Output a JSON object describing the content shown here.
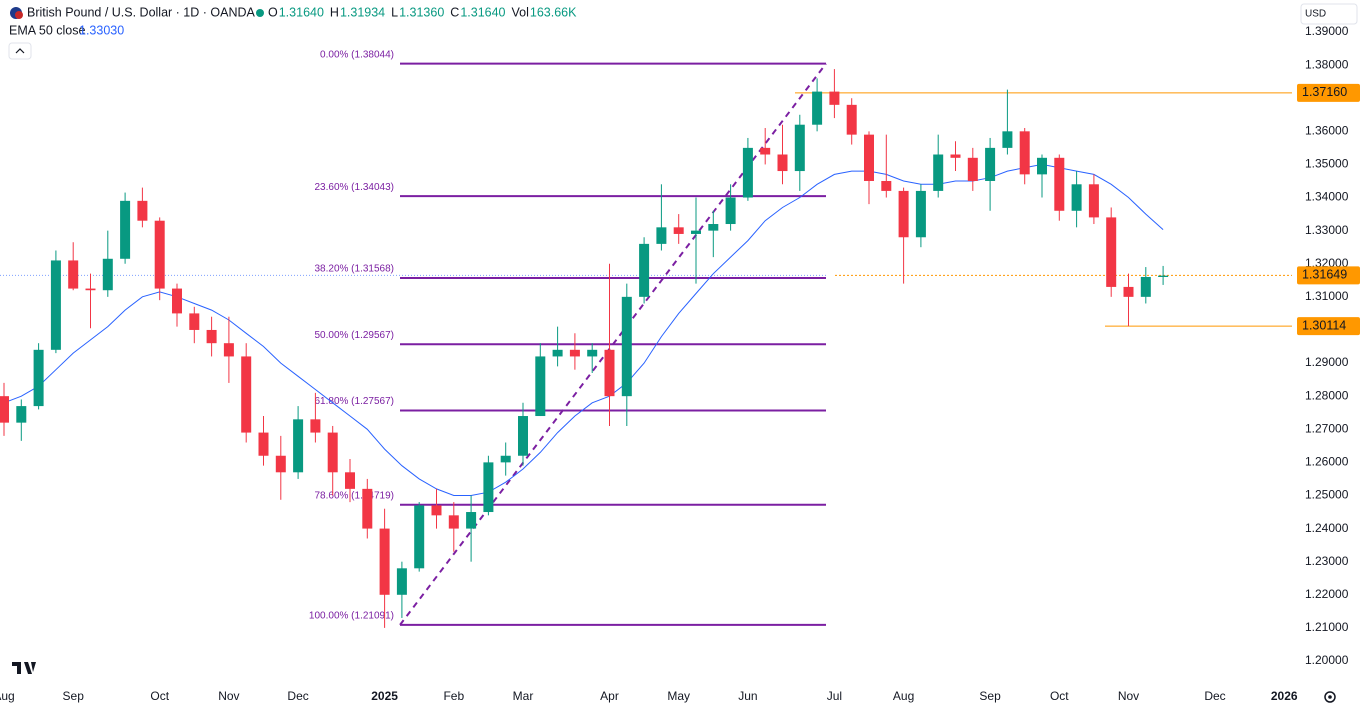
{
  "header": {
    "symbol": "British Pound / U.S. Dollar · 1D · OANDA",
    "ohlc": [
      {
        "key": "O",
        "value": "1.31640"
      },
      {
        "key": "H",
        "value": "1.31934"
      },
      {
        "key": "L",
        "value": "1.31360"
      },
      {
        "key": "C",
        "value": "1.31640"
      },
      {
        "key": "Vol",
        "value": "163.66K"
      }
    ],
    "indicator_value": "1.33030",
    "currency": "USD"
  },
  "chart_data": {
    "type": "candlestick",
    "categories": [
      "Aug",
      null,
      null,
      null,
      "Sep",
      null,
      null,
      null,
      null,
      "Oct",
      null,
      null,
      null,
      "Nov",
      null,
      null,
      null,
      "Dec",
      null,
      null,
      null,
      null,
      "2025",
      null,
      null,
      null,
      "Feb",
      null,
      null,
      null,
      "Mar",
      null,
      null,
      null,
      null,
      "Apr",
      null,
      null,
      null,
      "May",
      null,
      null,
      null,
      "Jun",
      null,
      null,
      null,
      null,
      "Jul",
      null,
      null,
      null,
      "Aug",
      null,
      null,
      null,
      null,
      "Sep",
      null,
      null,
      null,
      "Oct",
      null,
      null,
      null,
      "Nov",
      null,
      null,
      null,
      null,
      "Dec",
      null,
      null,
      null,
      "2026"
    ],
    "open": [
      1.28,
      1.272,
      1.277,
      1.294,
      1.321,
      1.3125,
      1.312,
      1.3215,
      1.339,
      1.333,
      1.3125,
      1.305,
      1.3,
      1.296,
      1.292,
      1.269,
      1.262,
      1.257,
      1.273,
      1.269,
      1.257,
      1.252,
      1.24,
      1.22,
      1.228,
      1.247,
      1.244,
      1.24,
      1.245,
      1.26,
      1.262,
      1.274,
      1.292,
      1.294,
      1.292,
      1.294,
      1.28,
      1.31,
      1.326,
      1.331,
      1.329,
      1.33,
      1.332,
      1.34,
      1.355,
      1.353,
      1.348,
      1.362,
      1.372,
      1.368,
      1.359,
      1.345,
      1.342,
      1.328,
      1.342,
      1.353,
      1.352,
      1.345,
      1.355,
      1.36,
      1.347,
      1.352,
      1.336,
      1.344,
      1.334,
      1.313,
      1.31,
      1.316,
      null,
      null,
      null,
      null,
      null,
      null,
      null
    ],
    "high": [
      1.284,
      1.279,
      1.296,
      1.324,
      1.3265,
      1.317,
      1.33,
      1.3415,
      1.343,
      1.334,
      1.314,
      1.307,
      1.304,
      1.304,
      1.296,
      1.274,
      1.268,
      1.277,
      1.281,
      1.271,
      1.261,
      1.255,
      1.246,
      1.23,
      1.248,
      1.252,
      1.248,
      1.25,
      1.262,
      1.266,
      1.278,
      1.296,
      1.301,
      1.299,
      1.296,
      1.32,
      1.314,
      1.328,
      1.344,
      1.335,
      1.34,
      1.336,
      1.344,
      1.358,
      1.361,
      1.362,
      1.365,
      1.376,
      1.3788,
      1.37,
      1.36,
      1.359,
      1.343,
      1.344,
      1.359,
      1.357,
      1.355,
      1.358,
      1.3726,
      1.361,
      1.353,
      1.353,
      1.348,
      1.347,
      1.337,
      1.317,
      1.319,
      1.31934,
      null,
      null,
      null,
      null,
      null,
      null,
      null
    ],
    "low": [
      1.268,
      1.2665,
      1.276,
      1.293,
      1.312,
      1.3005,
      1.31,
      1.32,
      1.331,
      1.309,
      1.301,
      1.296,
      1.292,
      1.284,
      1.266,
      1.259,
      1.2487,
      1.255,
      1.266,
      1.25,
      1.248,
      1.237,
      1.21,
      1.213,
      1.227,
      1.24,
      1.233,
      1.23,
      1.244,
      1.256,
      1.259,
      1.274,
      1.289,
      1.288,
      1.287,
      1.271,
      1.271,
      1.308,
      1.324,
      1.326,
      1.314,
      1.322,
      1.33,
      1.339,
      1.35,
      1.344,
      1.342,
      1.36,
      1.364,
      1.356,
      1.338,
      1.34,
      1.314,
      1.325,
      1.34,
      1.348,
      1.342,
      1.336,
      1.353,
      1.344,
      1.34,
      1.333,
      1.331,
      1.332,
      1.31,
      1.3011,
      1.308,
      1.3136,
      null,
      null,
      null,
      null,
      null,
      null,
      null
    ],
    "close": [
      1.272,
      1.277,
      1.294,
      1.321,
      1.3125,
      1.312,
      1.3215,
      1.339,
      1.333,
      1.3125,
      1.305,
      1.3,
      1.296,
      1.292,
      1.269,
      1.262,
      1.257,
      1.273,
      1.269,
      1.257,
      1.252,
      1.24,
      1.22,
      1.228,
      1.247,
      1.244,
      1.24,
      1.245,
      1.26,
      1.262,
      1.274,
      1.292,
      1.294,
      1.292,
      1.294,
      1.28,
      1.31,
      1.326,
      1.331,
      1.329,
      1.33,
      1.332,
      1.34,
      1.355,
      1.353,
      1.348,
      1.362,
      1.372,
      1.368,
      1.359,
      1.345,
      1.342,
      1.328,
      1.342,
      1.353,
      1.352,
      1.345,
      1.355,
      1.36,
      1.347,
      1.352,
      1.336,
      1.344,
      1.334,
      1.313,
      1.31,
      1.316,
      1.3164,
      null,
      null,
      null,
      null,
      null,
      null,
      null
    ],
    "up_color": "#089981",
    "down_color": "#f23645",
    "ylim": [
      1.19275,
      1.39967
    ],
    "yticks": [
      {
        "value": 1.39,
        "label": "1.39000"
      },
      {
        "value": 1.38,
        "label": "1.38000"
      },
      {
        "value": 1.37,
        "label": "1.37000"
      },
      {
        "value": 1.36,
        "label": "1.36000"
      },
      {
        "value": 1.35,
        "label": "1.35000"
      },
      {
        "value": 1.34,
        "label": "1.34000"
      },
      {
        "value": 1.33,
        "label": "1.33000"
      },
      {
        "value": 1.32,
        "label": "1.32000"
      },
      {
        "value": 1.31,
        "label": "1.31000"
      },
      {
        "value": 1.3,
        "label": "1.30000"
      },
      {
        "value": 1.29,
        "label": "1.29000"
      },
      {
        "value": 1.28,
        "label": "1.28000"
      },
      {
        "value": 1.27,
        "label": "1.27000"
      },
      {
        "value": 1.26,
        "label": "1.26000"
      },
      {
        "value": 1.25,
        "label": "1.25000"
      },
      {
        "value": 1.24,
        "label": "1.24000"
      },
      {
        "value": 1.23,
        "label": "1.23000"
      },
      {
        "value": 1.22,
        "label": "1.22000"
      },
      {
        "value": 1.21,
        "label": "1.21000"
      },
      {
        "value": 1.2,
        "label": "1.20000"
      }
    ],
    "ema": {
      "name": "EMA 50 close",
      "color": "#2962ff",
      "values": [
        1.278,
        1.28,
        1.283,
        1.288,
        1.293,
        1.297,
        1.301,
        1.306,
        1.31,
        1.3115,
        1.31,
        1.308,
        1.306,
        1.303,
        1.299,
        1.295,
        1.29,
        1.286,
        1.282,
        1.278,
        1.274,
        1.27,
        1.264,
        1.259,
        1.255,
        1.252,
        1.25,
        1.25,
        1.251,
        1.254,
        1.258,
        1.263,
        1.269,
        1.274,
        1.278,
        1.28,
        1.284,
        1.29,
        1.298,
        1.305,
        1.311,
        1.317,
        1.322,
        1.327,
        1.333,
        1.337,
        1.34,
        1.344,
        1.347,
        1.348,
        1.348,
        1.347,
        1.345,
        1.344,
        1.344,
        1.345,
        1.345,
        1.346,
        1.348,
        1.349,
        1.35,
        1.349,
        1.348,
        1.347,
        1.344,
        1.34,
        1.335,
        1.3303,
        null,
        null,
        null,
        null,
        null,
        null,
        null
      ]
    },
    "fibonacci": {
      "color": "#7b1fa2",
      "levels": [
        {
          "value": 1.38044,
          "label": "0.00% (1.38044)"
        },
        {
          "value": 1.34043,
          "label": "23.60% (1.34043)"
        },
        {
          "value": 1.31568,
          "label": "38.20% (1.31568)"
        },
        {
          "value": 1.29567,
          "label": "50.00% (1.29567)"
        },
        {
          "value": 1.27567,
          "label": "61.80% (1.27567)"
        },
        {
          "value": 1.24719,
          "label": "78.60% (1.24719)"
        },
        {
          "value": 1.21091,
          "label": "100.00% (1.21091)"
        }
      ]
    },
    "price_lines": [
      {
        "value": 1.3716,
        "label": "1.37160"
      },
      {
        "value": 1.31649,
        "label": "1.31649"
      },
      {
        "value": 1.30114,
        "label": "1.30114"
      }
    ],
    "price_line_color": "#ff9800"
  }
}
